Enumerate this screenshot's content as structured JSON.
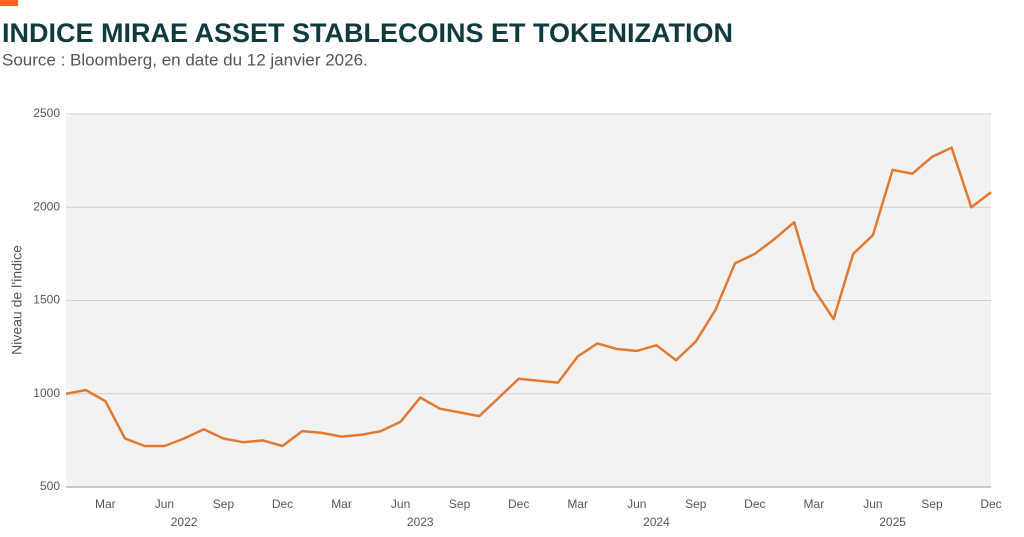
{
  "chart_data": {
    "type": "line",
    "title": "INDICE MIRAE ASSET STABLECOINS ET TOKENIZATION",
    "subtitle": "Source : Bloomberg, en date du 12 janvier 2026.",
    "y_label": "Niveau de l’indice",
    "color": "#e07a33",
    "x": [
      "2022-01",
      "2022-02",
      "2022-03",
      "2022-04",
      "2022-05",
      "2022-06",
      "2022-07",
      "2022-08",
      "2022-09",
      "2022-10",
      "2022-11",
      "2022-12",
      "2023-01",
      "2023-02",
      "2023-03",
      "2023-04",
      "2023-05",
      "2023-06",
      "2023-07",
      "2023-08",
      "2023-09",
      "2023-10",
      "2023-11",
      "2023-12",
      "2024-01",
      "2024-02",
      "2024-03",
      "2024-04",
      "2024-05",
      "2024-06",
      "2024-07",
      "2024-08",
      "2024-09",
      "2024-10",
      "2024-11",
      "2024-12",
      "2025-01",
      "2025-02",
      "2025-03",
      "2025-04",
      "2025-05",
      "2025-06",
      "2025-07",
      "2025-08",
      "2025-09",
      "2025-10",
      "2025-11",
      "2025-12"
    ],
    "values": [
      1000,
      1020,
      960,
      760,
      720,
      720,
      760,
      810,
      760,
      740,
      750,
      720,
      800,
      790,
      770,
      780,
      800,
      850,
      980,
      920,
      900,
      880,
      980,
      1080,
      1070,
      1060,
      1200,
      1270,
      1240,
      1230,
      1260,
      1180,
      1280,
      1450,
      1700,
      1750,
      1830,
      1920,
      1560,
      1400,
      1750,
      1850,
      2200,
      2180,
      2270,
      2320,
      2000,
      2080
    ],
    "xlim": [
      "2022-01",
      "2025-12"
    ],
    "xticks": [
      {
        "value": "2022-03",
        "label": "Mar"
      },
      {
        "value": "2022-06",
        "label": "Jun"
      },
      {
        "value": "2022-09",
        "label": "Sep"
      },
      {
        "value": "2022-12",
        "label": "Dec"
      },
      {
        "value": "2023-03",
        "label": "Mar"
      },
      {
        "value": "2023-06",
        "label": "Jun"
      },
      {
        "value": "2023-09",
        "label": "Sep"
      },
      {
        "value": "2023-12",
        "label": "Dec"
      },
      {
        "value": "2024-03",
        "label": "Mar"
      },
      {
        "value": "2024-06",
        "label": "Jun"
      },
      {
        "value": "2024-09",
        "label": "Sep"
      },
      {
        "value": "2024-12",
        "label": "Dec"
      },
      {
        "value": "2025-03",
        "label": "Mar"
      },
      {
        "value": "2025-06",
        "label": "Jun"
      },
      {
        "value": "2025-09",
        "label": "Sep"
      },
      {
        "value": "2025-12",
        "label": "Dec"
      }
    ],
    "x_year_labels": [
      {
        "value": "2022-07",
        "label": "2022"
      },
      {
        "value": "2023-07",
        "label": "2023"
      },
      {
        "value": "2024-07",
        "label": "2024"
      },
      {
        "value": "2025-07",
        "label": "2025"
      }
    ],
    "ylim": [
      500,
      2500
    ],
    "yticks": [
      500,
      1000,
      1500,
      2000,
      2500
    ],
    "grid": true
  }
}
